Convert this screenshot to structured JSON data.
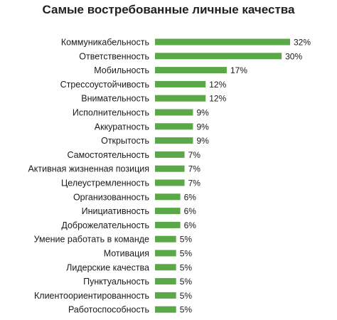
{
  "chart_data": {
    "type": "bar",
    "orientation": "horizontal",
    "title": "Самые востребованные личные качества",
    "bar_color": "#5aa847",
    "unit_suffix": "%",
    "categories": [
      "Коммуникабельность",
      "Ответственность",
      "Мобильность",
      "Стрессоустойчивость",
      "Внимательность",
      "Исполнительность",
      "Аккуратность",
      "Открытость",
      "Самостоятельность",
      "Активная жизненная позиция",
      "Целеустремленность",
      "Организованность",
      "Инициативность",
      "Доброжелательность",
      "Умение работать в команде",
      "Мотивация",
      "Лидерские качества",
      "Пунктуальность",
      "Клиентоориентированность",
      "Работоспособность"
    ],
    "values": [
      32,
      30,
      17,
      12,
      12,
      9,
      9,
      9,
      7,
      7,
      7,
      6,
      6,
      6,
      5,
      5,
      5,
      5,
      5,
      5
    ],
    "data_labels": [
      "32%",
      "30%",
      "17%",
      "12%",
      "12%",
      "9%",
      "9%",
      "9%",
      "7%",
      "7%",
      "7%",
      "6%",
      "6%",
      "6%",
      "5%",
      "5%",
      "5%",
      "5%",
      "5%",
      "5%"
    ],
    "xlim": [
      0,
      32
    ],
    "grid": false,
    "legend": "none"
  }
}
